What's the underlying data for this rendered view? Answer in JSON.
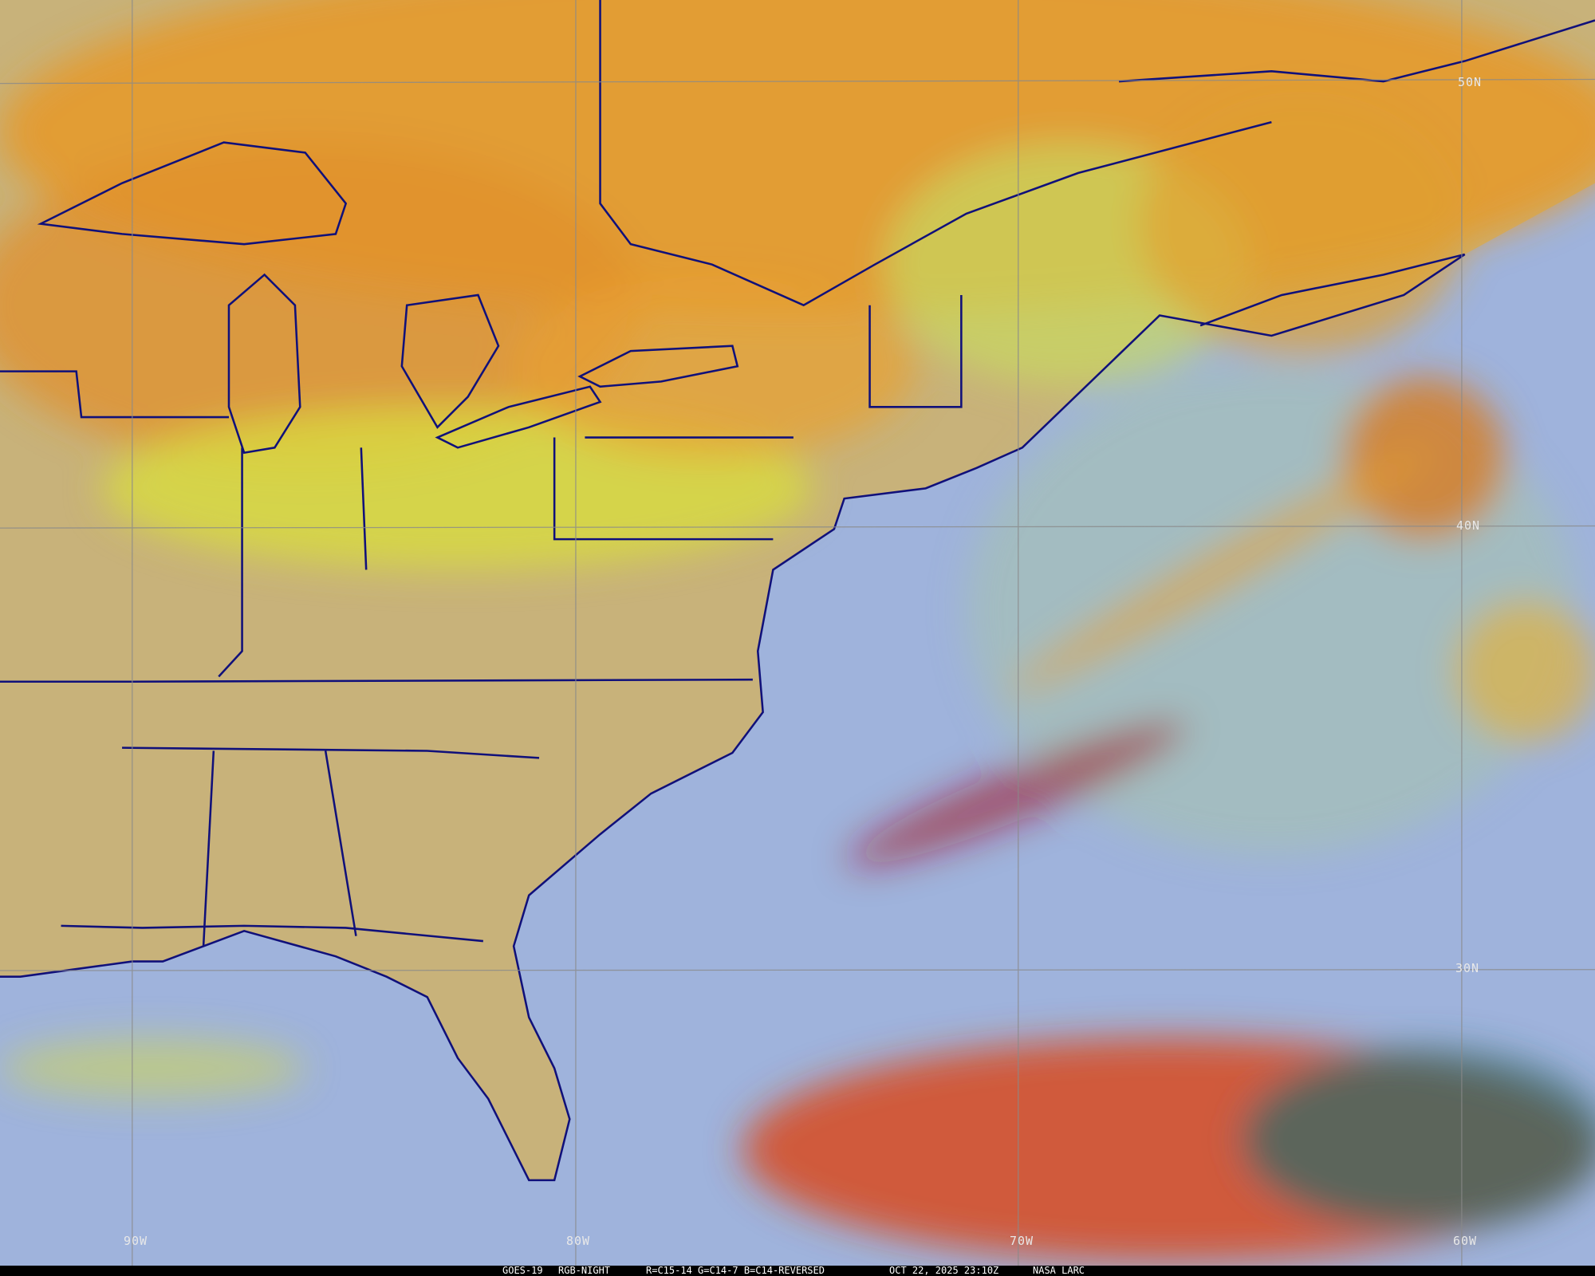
{
  "image": {
    "satellite": "GOES-19",
    "product": "RGB-NIGHT",
    "recipe": "R=C15-14 G=C14-7 B=C14-REVERSED",
    "datetime": "OCT 22, 2025 23:10Z",
    "credit": "NASA LARC"
  },
  "grid": {
    "latitude_labels": [
      "50N",
      "40N",
      "30N"
    ],
    "longitude_labels": [
      "90W",
      "80W",
      "70W",
      "60W"
    ]
  },
  "colors": {
    "land_clear": "#c8b27a",
    "ocean_clear": "#9fb3dc",
    "high_cloud": "#e8a030",
    "low_cloud": "#d8dc40",
    "deep_convection": "#b02020",
    "boundaries": "#10107a",
    "gridlines": "#8a8a8a"
  }
}
